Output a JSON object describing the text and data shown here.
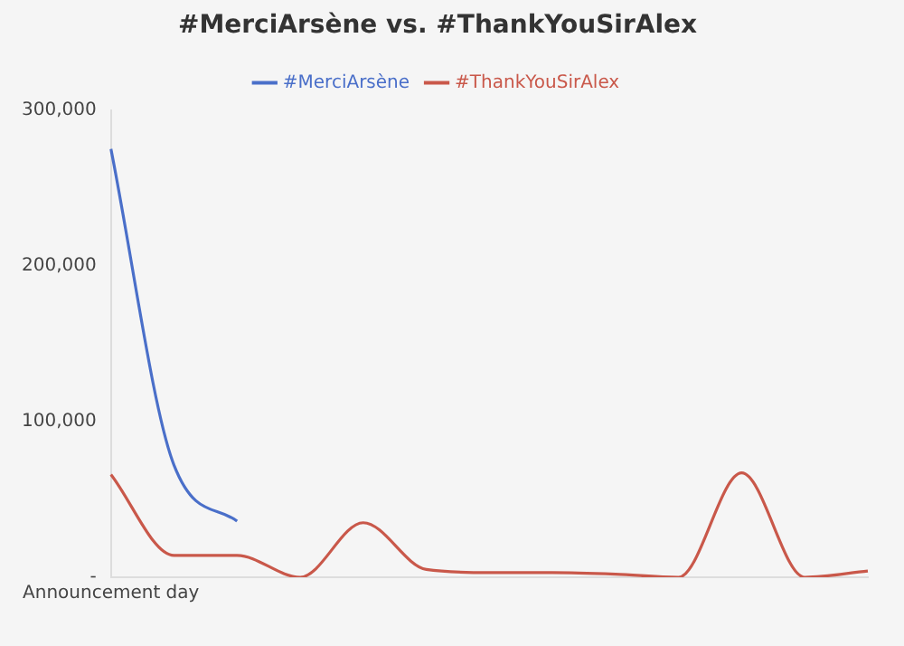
{
  "chart_data": {
    "type": "line",
    "title": "#MerciArsène vs. #ThankYouSirAlex",
    "categories": [
      "Announcement day",
      null,
      null,
      null,
      null,
      null,
      null,
      null,
      null,
      null,
      null,
      null,
      null
    ],
    "series": [
      {
        "name": "#MerciArsène",
        "color": "#4a6fc9",
        "values": [
          275000,
          72000,
          36000,
          null,
          null,
          null,
          null,
          null,
          null,
          null,
          null,
          null,
          null
        ]
      },
      {
        "name": "#ThankYouSirAlex",
        "color": "#c9584a",
        "values": [
          66000,
          14000,
          14000,
          0,
          35000,
          5000,
          3000,
          3000,
          2000,
          0,
          67000,
          0,
          4000
        ]
      }
    ],
    "ylim": [
      0,
      300000
    ],
    "yticks": [
      {
        "value": 0,
        "label": "-"
      },
      {
        "value": 100000,
        "label": "100,000"
      },
      {
        "value": 200000,
        "label": "200,000"
      },
      {
        "value": 300000,
        "label": "300,000"
      }
    ],
    "grid": false,
    "legend": "top",
    "marker": "none",
    "line_style": "solid"
  }
}
